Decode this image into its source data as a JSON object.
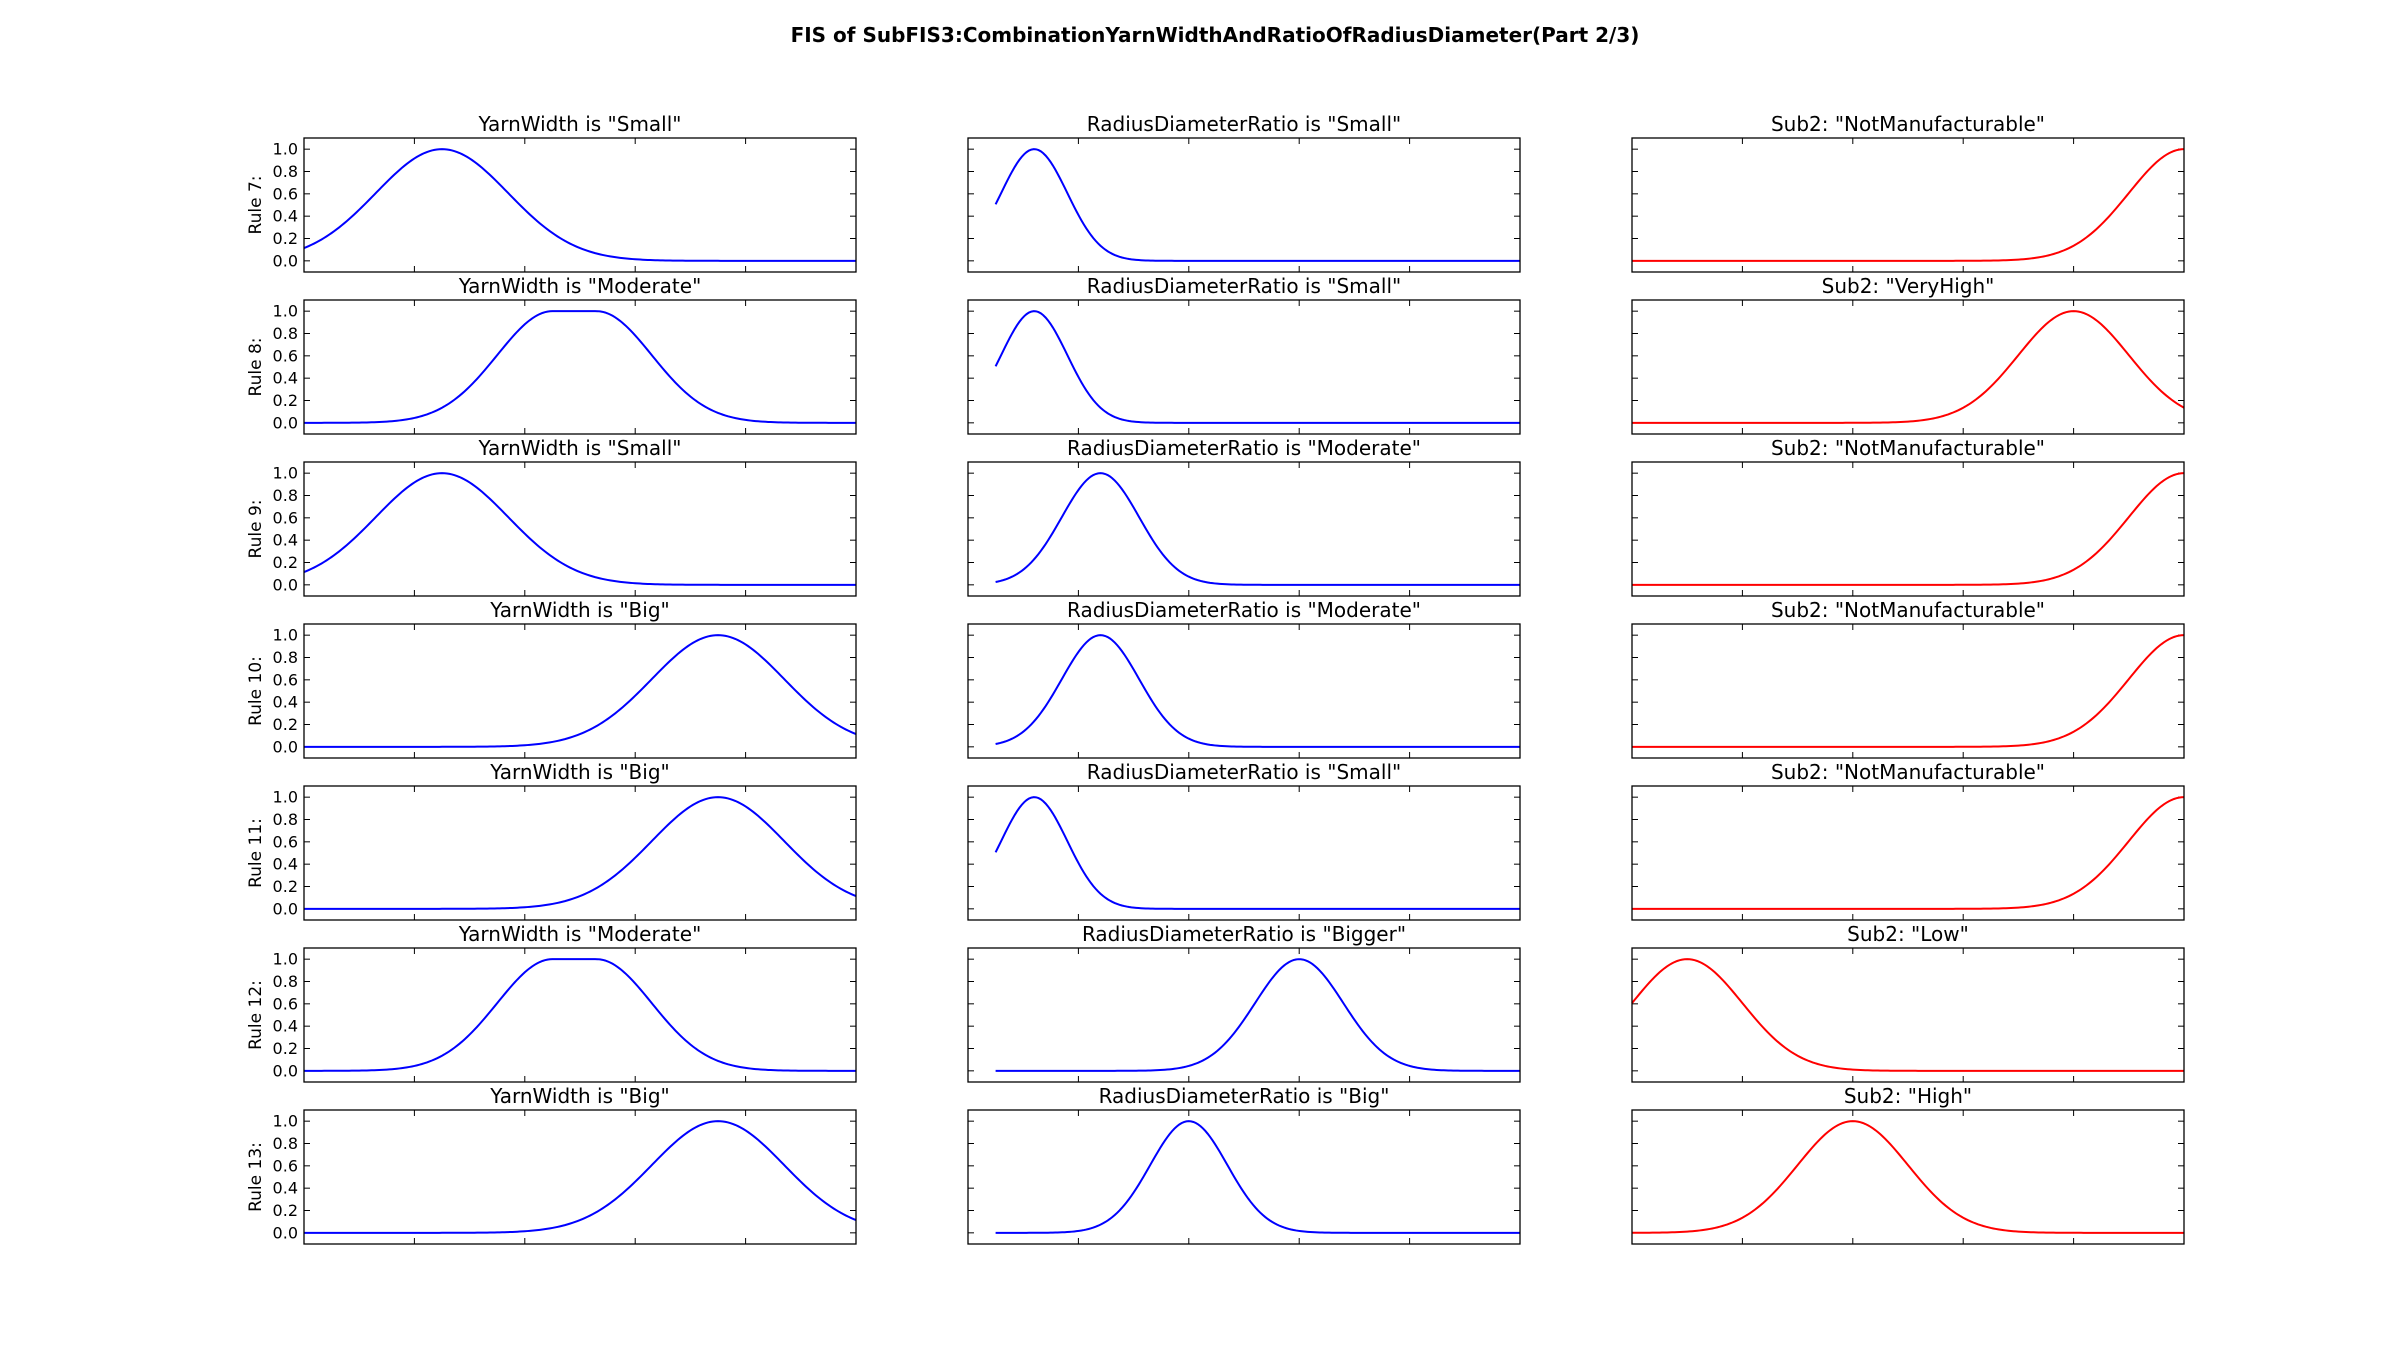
{
  "title": "FIS of SubFIS3:CombinationYarnWidthAndRatioOfRadiusDiameter(Part 2/3)",
  "colors": {
    "antecedent": "#0000ff",
    "consequent": "#ff0000"
  },
  "chart_data": {
    "type": "line",
    "title": "FIS of SubFIS3:CombinationYarnWidthAndRatioOfRadiusDiameter(Part 2/3)",
    "ylim": [
      -0.1,
      1.1
    ],
    "yticks": [
      "0.0",
      "0.2",
      "0.4",
      "0.6",
      "0.8",
      "1.0"
    ],
    "xlim": [
      0,
      1
    ],
    "xtick_labels_shown": false,
    "rows": [
      {
        "label": "Rule 7:",
        "panels": [
          {
            "title": "YarnWidth is \"Small\"",
            "shape": "gauss",
            "params": [
              0.25,
              0.12
            ]
          },
          {
            "title": "RadiusDiameterRatio is \"Small\"",
            "shape": "gauss",
            "params": [
              0.12,
              0.06
            ],
            "x_start": 0.05
          },
          {
            "title": "Sub2: \"NotManufacturable\"",
            "shape": "gauss",
            "params": [
              1.0,
              0.1
            ]
          }
        ]
      },
      {
        "label": "Rule 8:",
        "panels": [
          {
            "title": "YarnWidth is \"Moderate\"",
            "shape": "gauss2",
            "params": [
              0.45,
              0.53,
              0.1
            ]
          },
          {
            "title": "RadiusDiameterRatio is \"Small\"",
            "shape": "gauss",
            "params": [
              0.12,
              0.06
            ],
            "x_start": 0.05
          },
          {
            "title": "Sub2: \"VeryHigh\"",
            "shape": "gauss",
            "params": [
              0.8,
              0.1
            ]
          }
        ]
      },
      {
        "label": "Rule 9:",
        "panels": [
          {
            "title": "YarnWidth is \"Small\"",
            "shape": "gauss",
            "params": [
              0.25,
              0.12
            ]
          },
          {
            "title": "RadiusDiameterRatio is \"Moderate\"",
            "shape": "gauss",
            "params": [
              0.24,
              0.07
            ],
            "x_start": 0.05
          },
          {
            "title": "Sub2: \"NotManufacturable\"",
            "shape": "gauss",
            "params": [
              1.0,
              0.1
            ]
          }
        ]
      },
      {
        "label": "Rule 10:",
        "panels": [
          {
            "title": "YarnWidth is \"Big\"",
            "shape": "gauss",
            "params": [
              0.75,
              0.12
            ]
          },
          {
            "title": "RadiusDiameterRatio is \"Moderate\"",
            "shape": "gauss",
            "params": [
              0.24,
              0.07
            ],
            "x_start": 0.05
          },
          {
            "title": "Sub2: \"NotManufacturable\"",
            "shape": "gauss",
            "params": [
              1.0,
              0.1
            ]
          }
        ]
      },
      {
        "label": "Rule 11:",
        "panels": [
          {
            "title": "YarnWidth is \"Big\"",
            "shape": "gauss",
            "params": [
              0.75,
              0.12
            ]
          },
          {
            "title": "RadiusDiameterRatio is \"Small\"",
            "shape": "gauss",
            "params": [
              0.12,
              0.06
            ],
            "x_start": 0.05
          },
          {
            "title": "Sub2: \"NotManufacturable\"",
            "shape": "gauss",
            "params": [
              1.0,
              0.1
            ]
          }
        ]
      },
      {
        "label": "Rule 12:",
        "panels": [
          {
            "title": "YarnWidth is \"Moderate\"",
            "shape": "gauss2",
            "params": [
              0.45,
              0.53,
              0.1
            ]
          },
          {
            "title": "RadiusDiameterRatio is \"Bigger\"",
            "shape": "gauss",
            "params": [
              0.6,
              0.08
            ],
            "x_start": 0.05
          },
          {
            "title": "Sub2: \"Low\"",
            "shape": "gauss",
            "params": [
              0.1,
              0.1
            ]
          }
        ]
      },
      {
        "label": "Rule 13:",
        "panels": [
          {
            "title": "YarnWidth is \"Big\"",
            "shape": "gauss",
            "params": [
              0.75,
              0.12
            ]
          },
          {
            "title": "RadiusDiameterRatio is \"Big\"",
            "shape": "gauss",
            "params": [
              0.4,
              0.07
            ],
            "x_start": 0.05
          },
          {
            "title": "Sub2: \"High\"",
            "shape": "gauss",
            "params": [
              0.4,
              0.1
            ]
          }
        ]
      }
    ]
  }
}
